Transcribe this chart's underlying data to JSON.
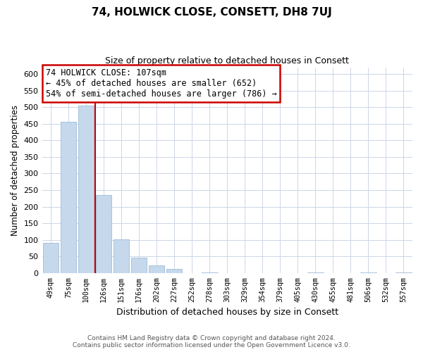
{
  "title": "74, HOLWICK CLOSE, CONSETT, DH8 7UJ",
  "subtitle": "Size of property relative to detached houses in Consett",
  "xlabel": "Distribution of detached houses by size in Consett",
  "ylabel": "Number of detached properties",
  "categories": [
    "49sqm",
    "75sqm",
    "100sqm",
    "126sqm",
    "151sqm",
    "176sqm",
    "202sqm",
    "227sqm",
    "252sqm",
    "278sqm",
    "303sqm",
    "329sqm",
    "354sqm",
    "379sqm",
    "405sqm",
    "430sqm",
    "455sqm",
    "481sqm",
    "506sqm",
    "532sqm",
    "557sqm"
  ],
  "values": [
    90,
    455,
    505,
    235,
    102,
    47,
    22,
    12,
    0,
    2,
    0,
    0,
    0,
    0,
    0,
    2,
    0,
    0,
    2,
    0,
    2
  ],
  "bar_color": "#c5d8ec",
  "bar_edge_color": "#a0bcd8",
  "vline_x": 2.5,
  "vline_color": "#cc0000",
  "annotation_text": "74 HOLWICK CLOSE: 107sqm\n← 45% of detached houses are smaller (652)\n54% of semi-detached houses are larger (786) →",
  "annotation_box_color": "#ffffff",
  "annotation_box_edge": "#cc0000",
  "ylim": [
    0,
    620
  ],
  "yticks": [
    0,
    50,
    100,
    150,
    200,
    250,
    300,
    350,
    400,
    450,
    500,
    550,
    600
  ],
  "footer_line1": "Contains HM Land Registry data © Crown copyright and database right 2024.",
  "footer_line2": "Contains public sector information licensed under the Open Government Licence v3.0.",
  "background_color": "#ffffff",
  "grid_color": "#ccd6e8"
}
